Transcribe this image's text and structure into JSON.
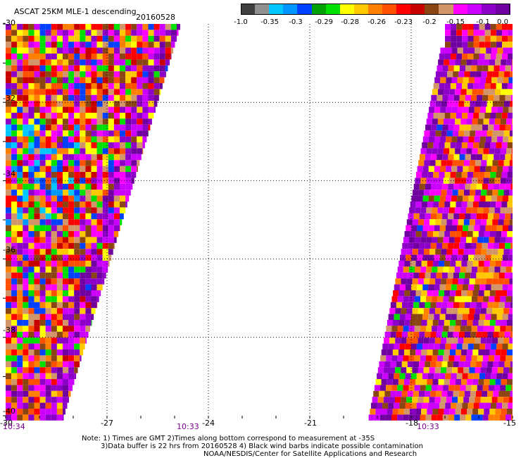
{
  "title": "ASCAT 25KM MLE-1 descending",
  "date": "20160528",
  "colorbar": {
    "colors": [
      "#404040",
      "#909090",
      "#00c8ff",
      "#0096ff",
      "#0040ff",
      "#00a000",
      "#00e000",
      "#ffff00",
      "#ffc800",
      "#ff8000",
      "#ff5000",
      "#ff0000",
      "#c80000",
      "#8b4513",
      "#d2956a",
      "#ff00ff",
      "#cc00ff",
      "#8c00c8",
      "#7000a0"
    ],
    "labels": [
      "-1.0",
      "-0.35",
      "-0.3",
      "-0.29",
      "-0.28",
      "-0.26",
      "-0.23",
      "-0.2",
      "-0.15",
      "-0.1",
      "0.0"
    ]
  },
  "map": {
    "lon_ticks": [
      "-30",
      "-27",
      "-24",
      "-21",
      "-18",
      "-15"
    ],
    "lat_ticks": [
      "-30",
      "-32",
      "-34",
      "-36",
      "-38",
      "-40"
    ],
    "lon_range": [
      -30,
      -15
    ],
    "lat_range": [
      -40,
      -30
    ],
    "grid": "dotted",
    "swaths": [
      "west (-30 to -25)",
      "east (-19 to -15)"
    ]
  },
  "times": {
    "left": "10:34",
    "middle": "10:33",
    "right": "10:33"
  },
  "notes": {
    "line1": "Note: 1) Times are GMT 2)Times along bottom correspond to measurement at -35S",
    "line2": "3)Data buffer is 22 hrs from 20160528 4) Black wind barbs indicate possible contamination",
    "line3": "NOAA/NESDIS/Center for Satellite Applications and Research"
  }
}
